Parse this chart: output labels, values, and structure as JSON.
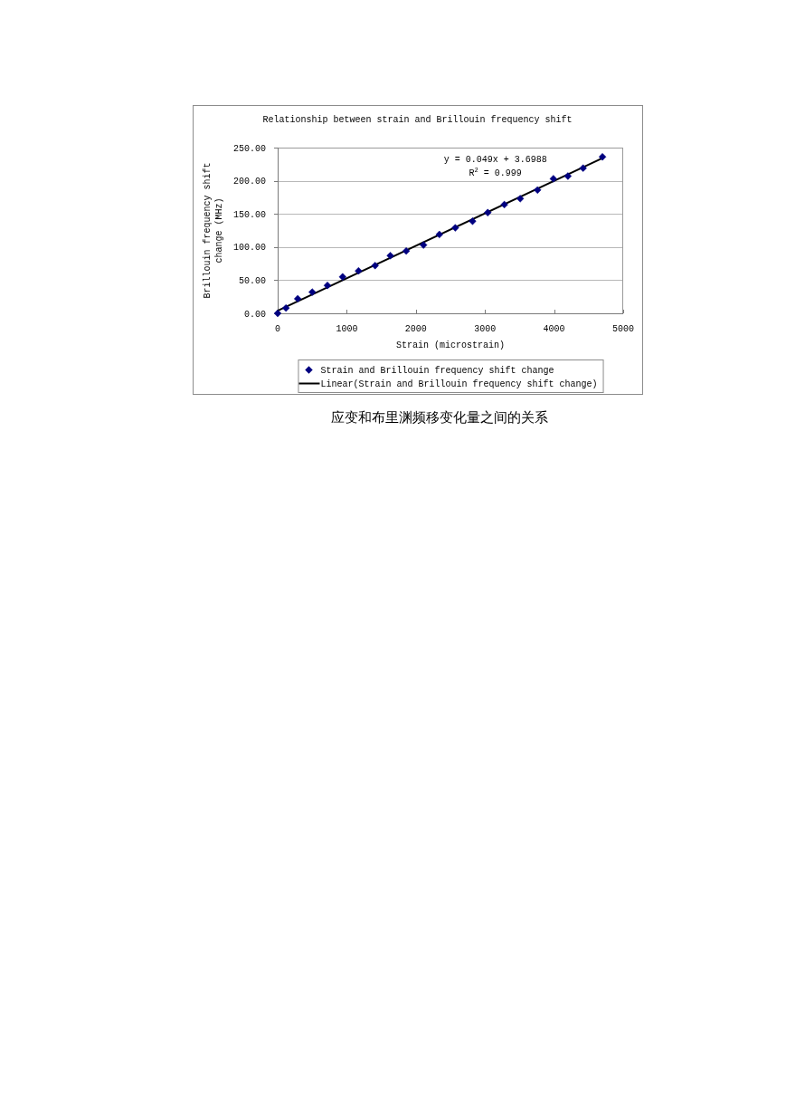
{
  "chart_data": {
    "type": "scatter",
    "title": "Relationship between strain and Brillouin frequency shift",
    "xlabel": "Strain (microstrain)",
    "ylabel": "Brillouin frequency shift change (MHz)",
    "xlim": [
      0,
      5000
    ],
    "xticks": [
      0,
      1000,
      2000,
      3000,
      4000,
      5000
    ],
    "ylim": [
      0,
      250
    ],
    "yticks": [
      {
        "value": 0,
        "label": "0.00"
      },
      {
        "value": 50,
        "label": "50.00"
      },
      {
        "value": 100,
        "label": "100.00"
      },
      {
        "value": 150,
        "label": "150.00"
      },
      {
        "value": 200,
        "label": "200.00"
      },
      {
        "value": 250,
        "label": "250.00"
      }
    ],
    "grid": "y",
    "legend": "bottom",
    "marker": "diamond",
    "series": [
      {
        "name": "Strain and Brillouin frequency shift change",
        "type": "scatter",
        "color": "#000080",
        "x": [
          0,
          120,
          290,
          500,
          720,
          940,
          1170,
          1410,
          1630,
          1860,
          2110,
          2340,
          2570,
          2820,
          3040,
          3280,
          3510,
          3760,
          3990,
          4200,
          4420,
          4700
        ],
        "values": [
          0,
          8,
          22,
          32,
          42,
          55,
          64,
          72,
          87,
          94,
          103,
          119,
          129,
          139,
          152,
          164,
          173,
          186,
          203,
          207,
          219,
          236
        ]
      },
      {
        "name": "Linear(Strain and Brillouin frequency shift change)",
        "type": "line",
        "color": "#000000",
        "line_style": "solid",
        "marker": "none",
        "x": [
          0,
          4700
        ],
        "values": [
          4,
          234
        ]
      }
    ],
    "annotations": [
      "y = 0.049x + 3.6988",
      "R$^{2}$ = 0.999",
      "应变和布里渊频移变化量之间的关系"
    ]
  }
}
